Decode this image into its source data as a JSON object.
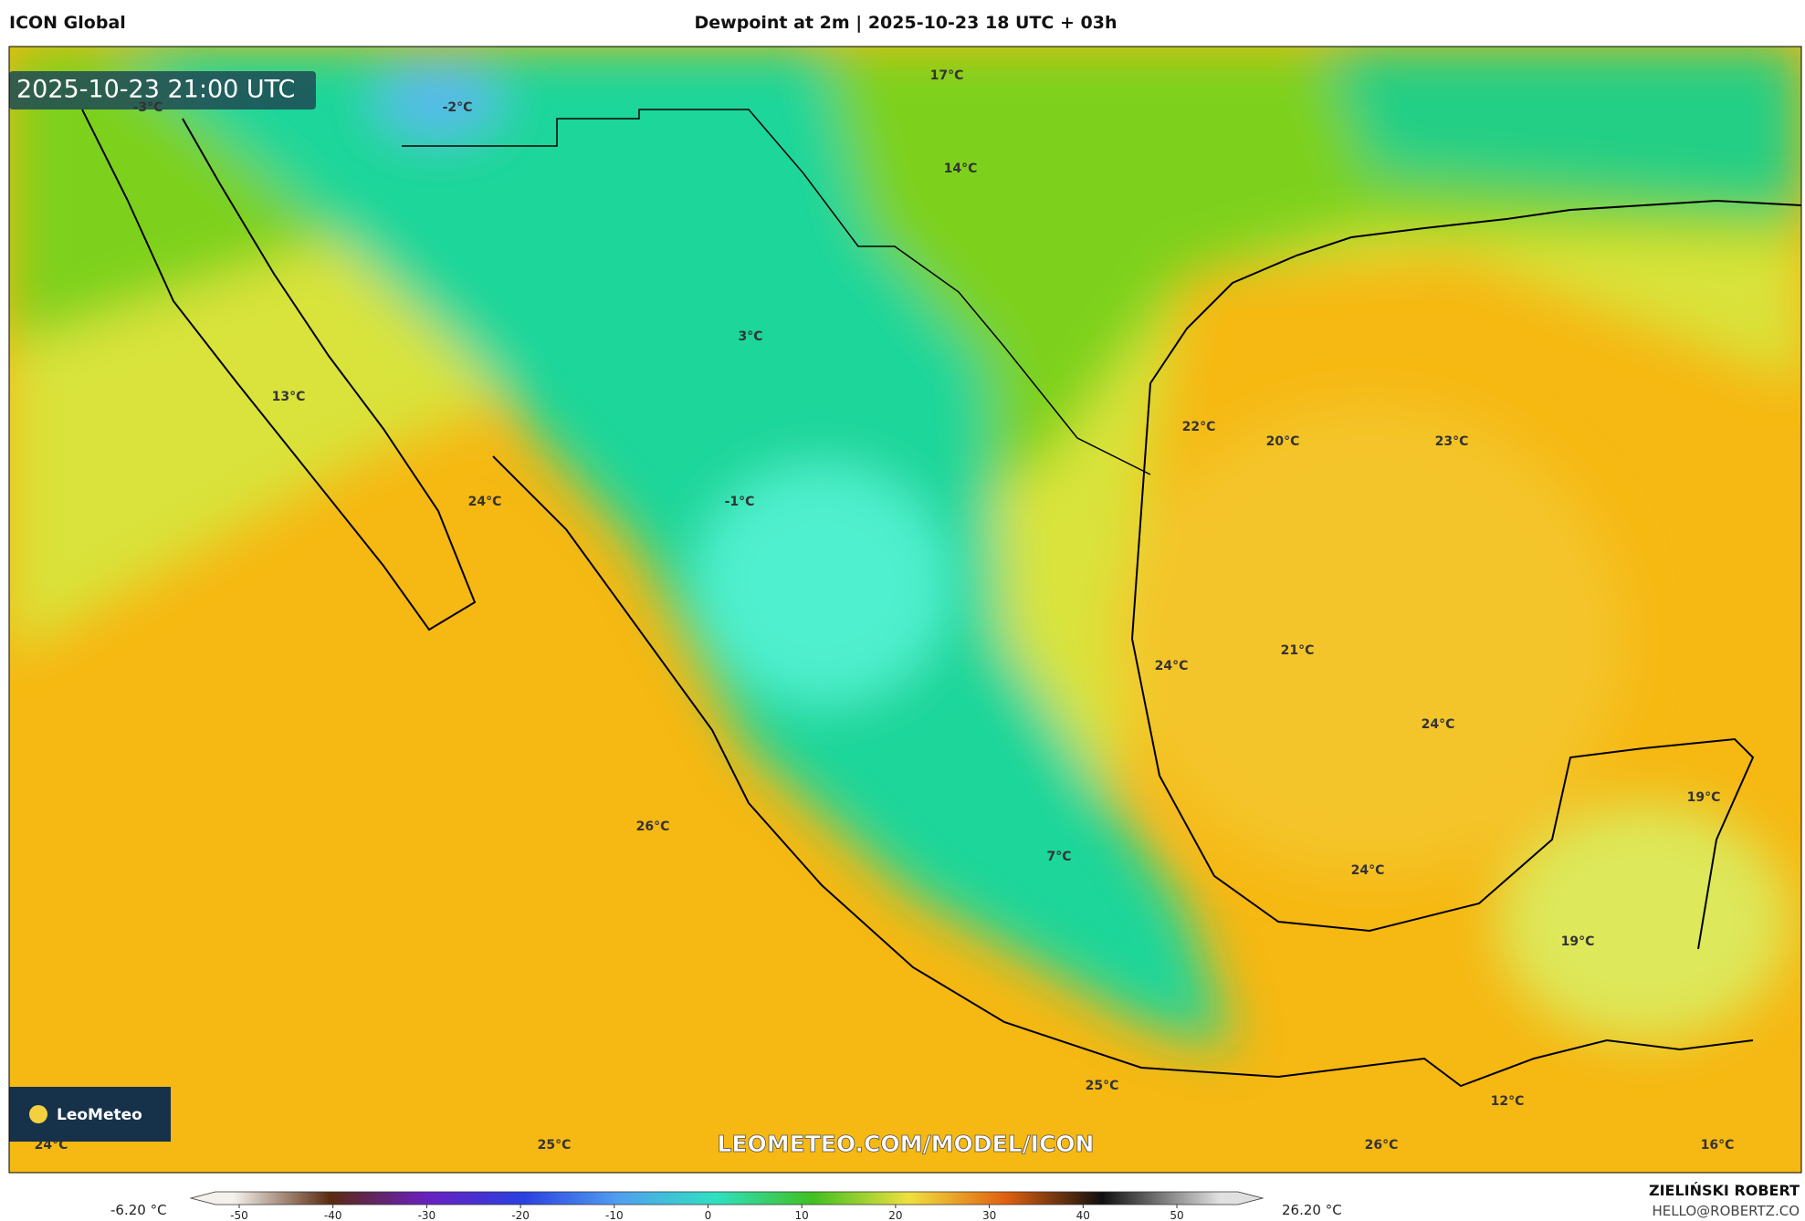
{
  "header": {
    "model": "ICON Global",
    "title": "Dewpoint at 2m | 2025-10-23 18 UTC + 03h"
  },
  "map": {
    "timestamp": "2025-10-23 21:00 UTC",
    "labels": [
      "-3°C",
      "-2°C",
      "17°C",
      "14°C",
      "3°C",
      "13°C",
      "22°C",
      "20°C",
      "23°C",
      "24°C",
      "-1°C",
      "24°C",
      "21°C",
      "24°C",
      "19°C",
      "26°C",
      "7°C",
      "24°C",
      "19°C",
      "25°C",
      "12°C",
      "24°C",
      "25°C",
      "26°C",
      "16°C"
    ],
    "logo": "LeoMeteo",
    "watermark": "LEOMETEO.COM/MODEL/ICON"
  },
  "legend": {
    "min": "-6.20 °C",
    "max": "26.20 °C",
    "ticks": [
      -50,
      -40,
      -30,
      -20,
      -10,
      0,
      10,
      20,
      30,
      40,
      50
    ]
  },
  "footer": {
    "author": "ZIELIŃSKI ROBERT",
    "contact": "HELLO@ROBERTZ.CO"
  }
}
